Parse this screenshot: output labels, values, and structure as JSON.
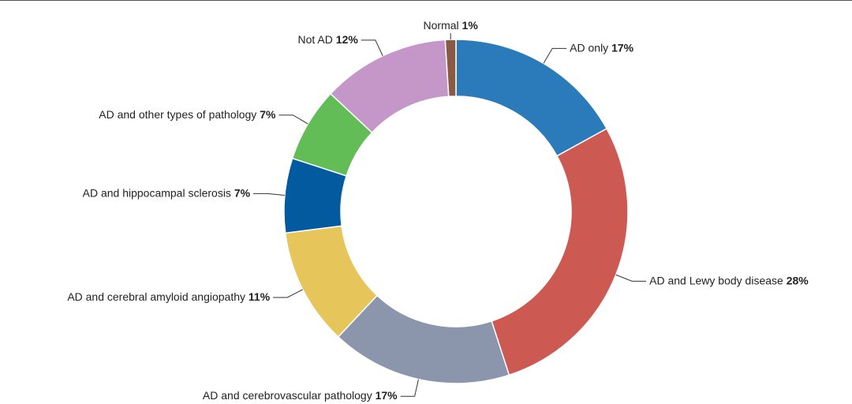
{
  "chart_data": {
    "type": "donut",
    "categories": [
      "AD only",
      "AD and Lewy body disease",
      "AD and cerebrovascular pathology",
      "AD and cerebral amyloid angiopathy",
      "AD and hippocampal sclerosis",
      "AD and other types of pathology",
      "Not AD",
      "Normal"
    ],
    "values": [
      17,
      28,
      17,
      11,
      7,
      7,
      12,
      1
    ],
    "value_labels": [
      "17%",
      "28%",
      "17%",
      "11%",
      "7%",
      "7%",
      "12%",
      "1%"
    ],
    "colors": [
      "#2b7bba",
      "#cd5a52",
      "#8b96ad",
      "#e6c55a",
      "#035a9e",
      "#62bd56",
      "#c497c8",
      "#8a5a44"
    ]
  }
}
